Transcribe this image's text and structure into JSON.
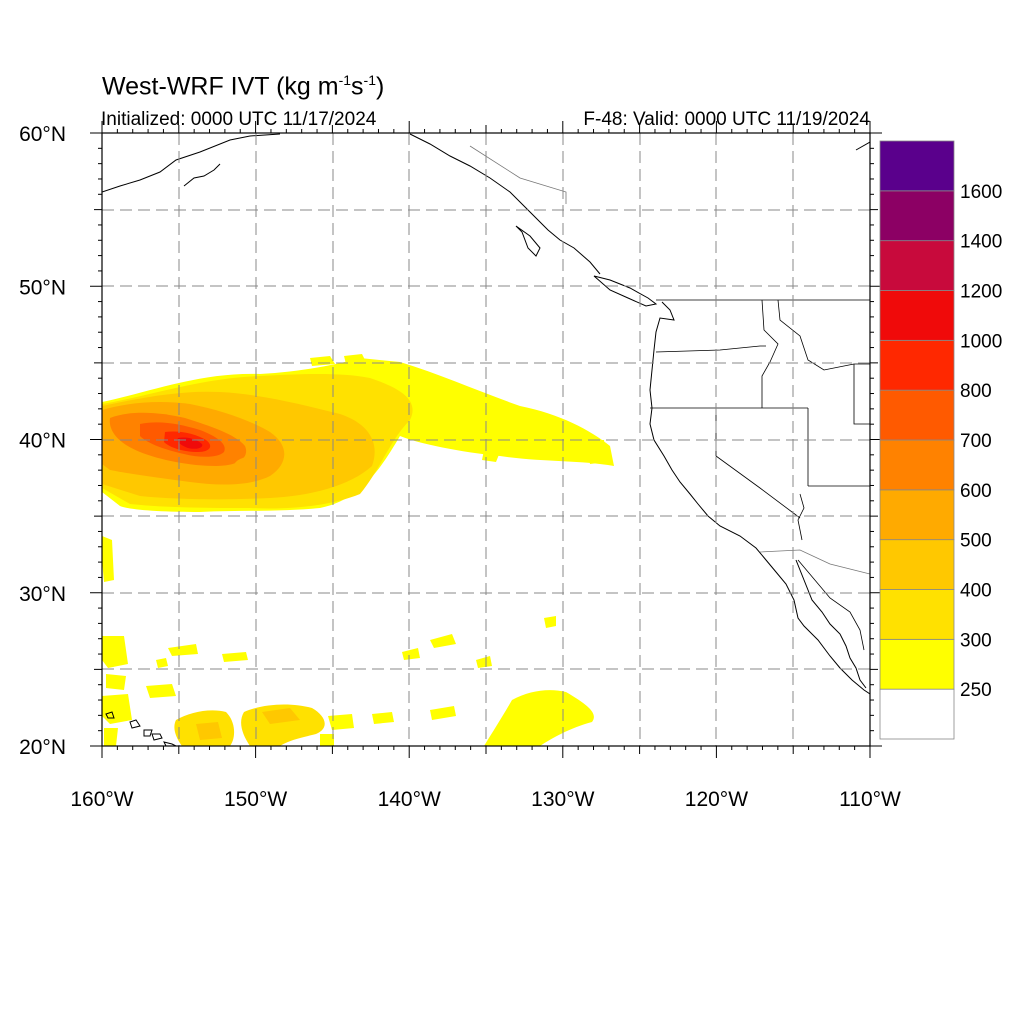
{
  "title": {
    "main": "West-WRF IVT (kg m",
    "exp1": "-1",
    "mid": "s",
    "exp2": "-1",
    "close": ")"
  },
  "subtitle": {
    "initialized": "Initialized: 0000 UTC 11/17/2024",
    "valid": "F-48: Valid: 0000 UTC 11/19/2024"
  },
  "map": {
    "lon_range": [
      -160,
      -110
    ],
    "lat_range": [
      20,
      60
    ],
    "lon_ticks": [
      {
        "value": -160,
        "label": "160°W"
      },
      {
        "value": -150,
        "label": "150°W"
      },
      {
        "value": -140,
        "label": "140°W"
      },
      {
        "value": -130,
        "label": "130°W"
      },
      {
        "value": -120,
        "label": "120°W"
      },
      {
        "value": -110,
        "label": "110°W"
      }
    ],
    "lat_ticks": [
      {
        "value": 60,
        "label": "60°N"
      },
      {
        "value": 50,
        "label": "50°N"
      },
      {
        "value": 40,
        "label": "40°N"
      },
      {
        "value": 30,
        "label": "30°N"
      },
      {
        "value": 20,
        "label": "20°N"
      }
    ],
    "gridlines": "dashed gray every 5°",
    "features": [
      "Pacific atmospheric river plume ~36–44°N, 160–127°W",
      "IVT maximum ~1000 near 40°N 155°W",
      "Scattered moisture patches 20–28°N",
      "North American west coastline and state borders"
    ]
  },
  "colorbar": {
    "levels": [
      {
        "label": "",
        "color": "#ffffff"
      },
      {
        "label": "250",
        "color": "#ffff00"
      },
      {
        "label": "300",
        "color": "#ffe100"
      },
      {
        "label": "400",
        "color": "#ffc800"
      },
      {
        "label": "500",
        "color": "#ffaa00"
      },
      {
        "label": "600",
        "color": "#ff8200"
      },
      {
        "label": "700",
        "color": "#ff5a00"
      },
      {
        "label": "800",
        "color": "#ff2800"
      },
      {
        "label": "1000",
        "color": "#f00a0a"
      },
      {
        "label": "1200",
        "color": "#c80a3c"
      },
      {
        "label": "1400",
        "color": "#8c0064"
      },
      {
        "label": "1600",
        "color": "#5a008c"
      }
    ]
  }
}
